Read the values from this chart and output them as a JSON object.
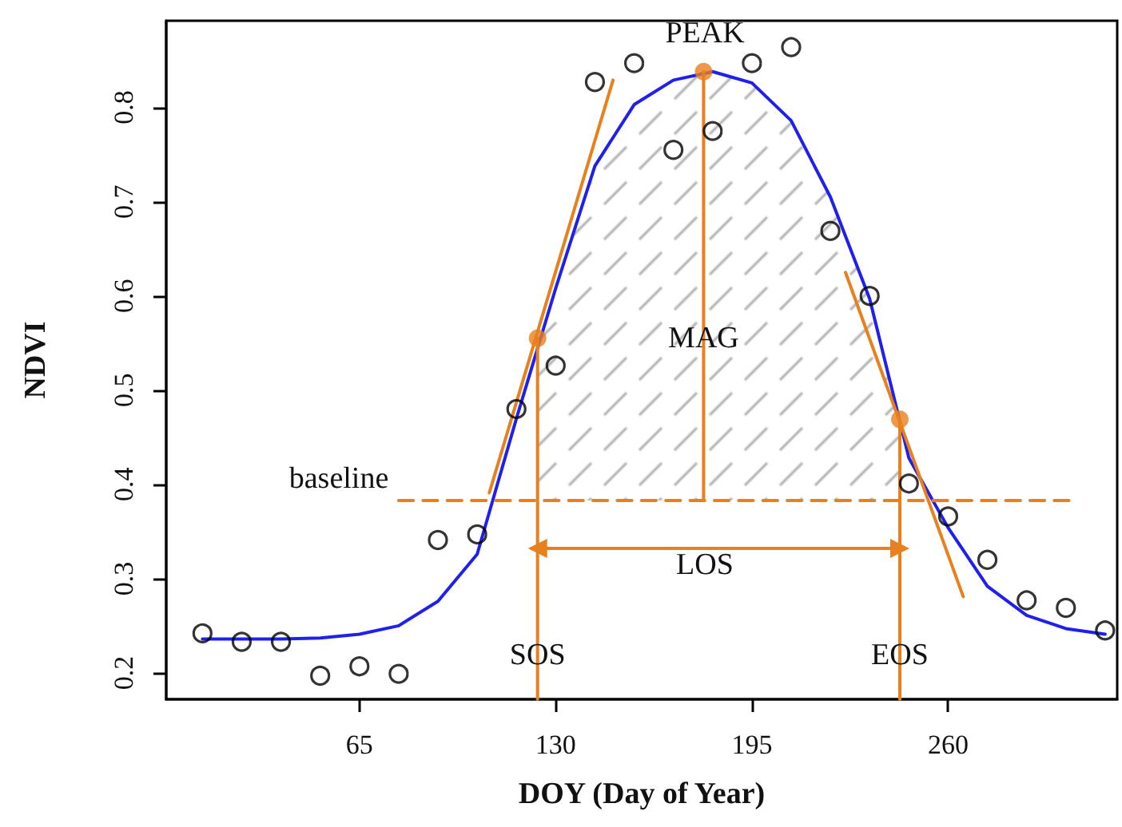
{
  "chart_data": {
    "type": "scatter",
    "xlabel": "DOY (Day of Year)",
    "ylabel": "NDVI",
    "xlim": [
      1,
      316
    ],
    "xticks": [
      65,
      130,
      195,
      260
    ],
    "ylim": [
      0.172,
      0.892
    ],
    "yticks": [
      0.2,
      0.3,
      0.4,
      0.5,
      0.6,
      0.7,
      0.8
    ],
    "grid": false,
    "series": [
      {
        "type": "area",
        "color": "#a0a0a0",
        "x": [
          124,
          130,
          143,
          156,
          169,
          182,
          195,
          208,
          221,
          234,
          244
        ],
        "values": [
          0.555,
          0.608,
          0.738,
          0.803,
          0.829,
          0.838,
          0.826,
          0.786,
          0.705,
          0.597,
          0.469
        ]
      },
      {
        "type": "line",
        "color": "#2020ee",
        "marker": "none",
        "x": [
          13,
          26,
          39,
          52,
          65,
          78,
          91,
          104,
          117,
          130,
          143,
          156,
          169,
          182,
          195,
          208,
          221,
          234,
          247,
          260,
          273,
          286,
          299,
          312
        ],
        "values": [
          0.236,
          0.236,
          0.236,
          0.237,
          0.241,
          0.25,
          0.276,
          0.326,
          0.47,
          0.608,
          0.738,
          0.803,
          0.829,
          0.838,
          0.826,
          0.786,
          0.705,
          0.597,
          0.428,
          0.354,
          0.292,
          0.261,
          0.247,
          0.241
        ]
      },
      {
        "type": "line",
        "color": "#e8801e",
        "marker": "none",
        "line_style": "dashed",
        "x": [
          78,
          300
        ],
        "values": [
          0.383,
          0.383
        ]
      },
      {
        "type": "line",
        "color": "#e8801e",
        "marker": "none",
        "x": [
          108,
          149
        ],
        "values": [
          0.391,
          0.829
        ]
      },
      {
        "type": "line",
        "color": "#e8801e",
        "marker": "none",
        "x": [
          226,
          265
        ],
        "values": [
          0.625,
          0.281
        ]
      },
      {
        "type": "line",
        "color": "#e8801e",
        "marker": "none",
        "x": [
          124,
          124
        ],
        "values": [
          0.172,
          0.555
        ]
      },
      {
        "type": "line",
        "color": "#e8801e",
        "marker": "none",
        "x": [
          244,
          244
        ],
        "values": [
          0.172,
          0.469
        ]
      },
      {
        "type": "line",
        "color": "#e8801e",
        "marker": "none",
        "x": [
          179,
          179
        ],
        "values": [
          0.383,
          0.838
        ]
      },
      {
        "type": "line",
        "color": "#e8801e",
        "marker": "triangle",
        "x": [
          124,
          244
        ],
        "values": [
          0.332,
          0.332
        ]
      },
      {
        "color": "#000000",
        "marker": "open_circle",
        "x": [
          13,
          26,
          39,
          52,
          65,
          78,
          91,
          104,
          117,
          130,
          143,
          156,
          169,
          182,
          195,
          208,
          221,
          234,
          247,
          260,
          273,
          286,
          299,
          312
        ],
        "values": [
          0.242,
          0.233,
          0.233,
          0.197,
          0.207,
          0.199,
          0.341,
          0.347,
          0.48,
          0.526,
          0.827,
          0.847,
          0.755,
          0.775,
          0.847,
          0.864,
          0.669,
          0.6,
          0.401,
          0.366,
          0.32,
          0.277,
          0.269,
          0.245
        ]
      },
      {
        "type": "scatter",
        "color": "#e8801e",
        "marker": "circle",
        "x": [
          124,
          179,
          244
        ],
        "values": [
          0.555,
          0.838,
          0.469
        ]
      }
    ],
    "annotations": [
      "PEAK",
      {
        "text": "MAG",
        "x": 179,
        "y": 0.555
      },
      "LOS",
      {
        "text": "SOS",
        "x": 124,
        "y": 0.219
      },
      {
        "text": "EOS",
        "x": 244,
        "y": 0.219
      },
      "baseline"
    ]
  }
}
